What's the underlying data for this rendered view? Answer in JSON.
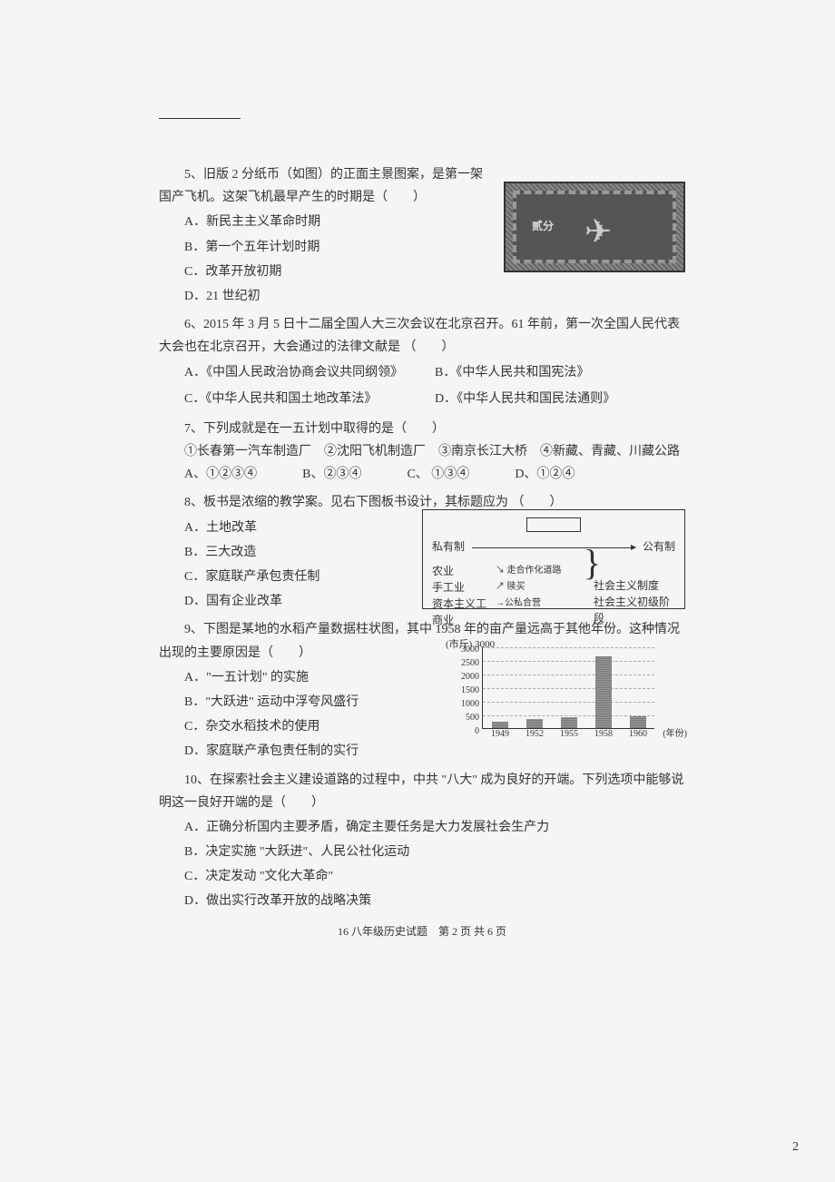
{
  "q5": {
    "stem": "5、旧版 2 分纸币（如图）的正面主景图案，是第一架国产飞机。这架飞机最早产生的时期是（　　）",
    "A": "A．新民主主义革命时期",
    "B": "B．第一个五年计划时期",
    "C": "C．改革开放初期",
    "D": "D．21 世纪初",
    "banknote_label": "贰分"
  },
  "q6": {
    "stem": "6、2015 年 3 月 5 日十二届全国人大三次会议在北京召开。61 年前，第一次全国人民代表大会也在北京召开，大会通过的法律文献是 （　　）",
    "A": "A．《中国人民政治协商会议共同纲领》",
    "B": "B．《中华人民共和国宪法》",
    "C": "C．《中华人民共和国土地改革法》",
    "D": "D．《中华人民共和国民法通则》"
  },
  "q7": {
    "stem": "7、下列成就是在一五计划中取得的是（　　）",
    "items": "①长春第一汽车制造厂　②沈阳飞机制造厂　③南京长江大桥　④新藏、青藏、川藏公路",
    "A": "A、①②③④",
    "B": "B、②③④",
    "C": "C、 ①③④",
    "D": "D、①②④"
  },
  "q8": {
    "stem": "8、板书是浓缩的教学案。见右下图板书设计，其标题应为 （　　）",
    "A": "A．土地改革",
    "B": "B．三大改造",
    "C": "C．家庭联产承包责任制",
    "D": "D．国有企业改革",
    "diagram": {
      "left_top": "私有制",
      "right_top": "公有制",
      "rows": [
        "农业",
        "手工业",
        "资本主义工商业"
      ],
      "mid1": "走合作化道路",
      "mid2": "赎买",
      "mid3": "公私合营",
      "right1": "社会主义制度",
      "right2": "社会主义初级阶段"
    }
  },
  "q9": {
    "stem": "9、下图是某地的水稻产量数据柱状图，其中 1958 年的亩产量远高于其他年份。这种情况出现的主要原因是（　　）",
    "A": "A．\"一五计划\" 的实施",
    "B": "B．\"大跃进\" 运动中浮夸风盛行",
    "C": "C．杂交水稻技术的使用",
    "D": "D．家庭联产承包责任制的实行",
    "chart": {
      "ylabel": "(市斤) 3000",
      "yticks": [
        "0",
        "500",
        "1000",
        "1500",
        "2000",
        "2500",
        "3000"
      ],
      "xticks": [
        "1949",
        "1952",
        "1955",
        "1958",
        "1960"
      ],
      "xlabel": "(年份)",
      "values": [
        240,
        350,
        400,
        2650,
        450
      ],
      "ymax": 3000,
      "bar_color": "#888888",
      "grid_color": "#aaaaaa"
    }
  },
  "q10": {
    "stem": "10、在探索社会主义建设道路的过程中，中共 \"八大\" 成为良好的开端。下列选项中能够说明这一良好开端的是（　　）",
    "A": "A．正确分析国内主要矛盾，确定主要任务是大力发展社会生产力",
    "B": "B．决定实施 \"大跃进\"、人民公社化运动",
    "C": "C．决定发动 \"文化大革命\"",
    "D": "D．做出实行改革开放的战略决策"
  },
  "footer": "16 八年级历史试题　第 2 页  共 6 页",
  "page_number": "2"
}
